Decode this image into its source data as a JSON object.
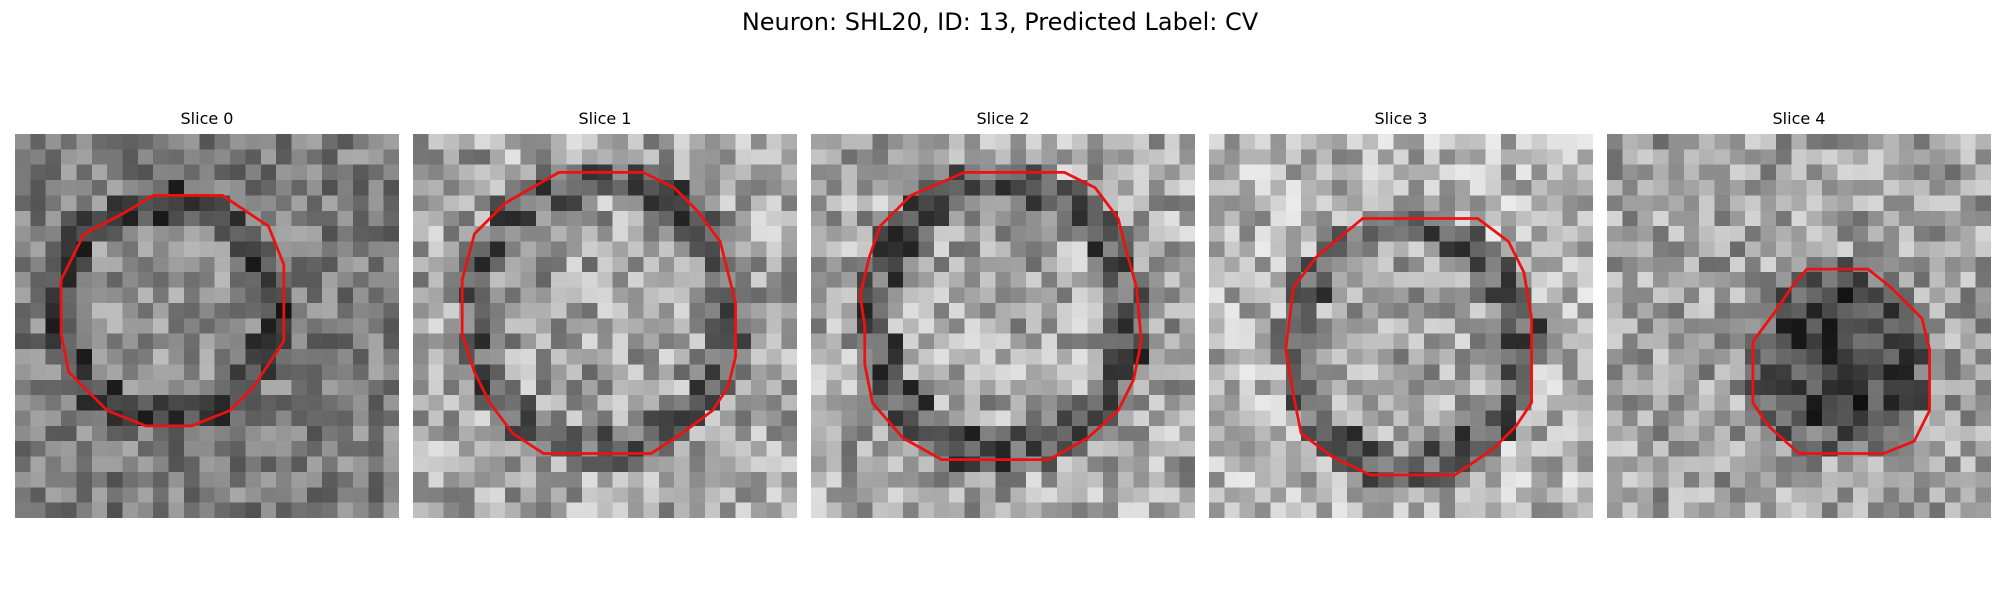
{
  "figure": {
    "title": "Neuron: SHL20, ID: 13, Predicted Label: CV",
    "contour_color": "#ee1111"
  },
  "panels": [
    {
      "title": "Slice 0"
    },
    {
      "title": "Slice 1"
    },
    {
      "title": "Slice 2"
    },
    {
      "title": "Slice 3"
    },
    {
      "title": "Slice 4"
    }
  ]
}
